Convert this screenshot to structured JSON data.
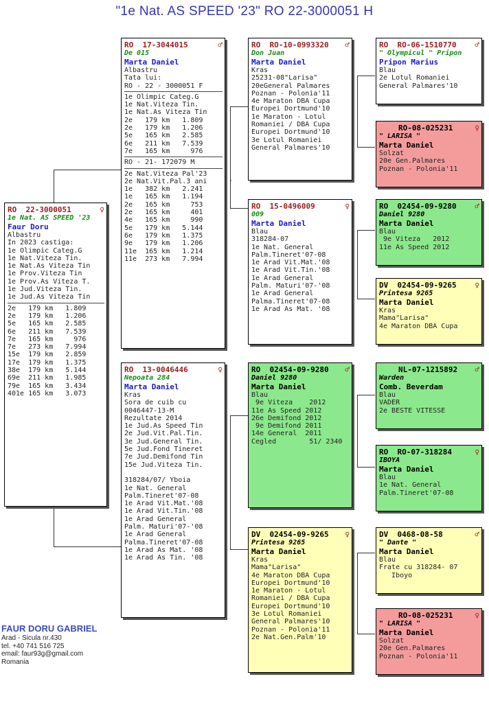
{
  "title": "\"1e Nat. AS SPEED '23\"  RO  22-3000051 H",
  "subject": {
    "ring": "RO  22-3000051",
    "sex": "♀",
    "name": "1e Nat. AS SPEED '23",
    "owner": "Faur Doru",
    "lines": [
      "Albastru",
      "In 2023 castiga:",
      "1e Olimpic Categ.G",
      "1e Nat.Viteza Tin.",
      "1e Nat.As Viteza Tin",
      "1e Prov.Viteza Tin",
      "1e Prov.As Viteza T.",
      "1e Jud.Viteza Tin.",
      "1e Jud.As Viteza Tin"
    ],
    "results": [
      "2e   179 km   1.809",
      "2e   179 km   1.206",
      "5e   165 km   2.585",
      "6e   211 km   7.539",
      "7e   165 km     976",
      "7e   273 km   7.994",
      "15e  179 km   2.859",
      "17e  179 km   1.375",
      "38e  179 km   5.144",
      "69e  211 km   1.985",
      "79e  165 km   3.434",
      "401e 165 km   3.073"
    ]
  },
  "sire": {
    "ring": "RO  17-3044015",
    "sex": "♂",
    "name": "De 015",
    "owner": "Marta Daniel",
    "lines": [
      "Albastru",
      "Tata lui:",
      "RO - 22 - 3000051 F"
    ],
    "block2": [
      "1e Olimpic Categ.G",
      "1e Nat.Viteza Tin.",
      "1e Nat.As Viteza Tin",
      "2e   179 km   1.809",
      "2e   179 km   1.206",
      "5e   165 km   2.585",
      "6e   211 km   7.539",
      "7e   165 km     976"
    ],
    "block3": [
      "RO - 21- 172079 M"
    ],
    "block4": [
      "2e Nat.Viteza Pal'23",
      "2e Nat.Vit.Pal.3 ani",
      "1e   382 km   2.241",
      "1e   165 km   1.194",
      "2e   165 km     753",
      "2e   165 km     401",
      "4e   165 km     990",
      "5e   179 km   5.144",
      "6e   179 km   1.375",
      "9e   179 km   1.206",
      "11e  165 km   1.214",
      "11e  273 km   7.994"
    ]
  },
  "dam": {
    "ring": "RO  13-0046446",
    "sex": "♀",
    "name": "Nepoata 284",
    "owner": "Marta Daniel",
    "lines": [
      "Kras",
      "Sora de cuib cu",
      "0046447-13-M",
      "Rezultate 2014",
      "1e Jud.As Speed Tin",
      "2e Jud.Vit.Pal.Tin.",
      "3e Jud.General Tin.",
      "5e Jud.Fond Tineret",
      "7e Jud.Demifond Tin",
      "15e Jud.Viteza Tin.",
      "",
      "318284/07/ Yboia",
      "1e Nat. General",
      "Palm.Tineret'07-08",
      "1e Arad Vit.Mat.'08",
      "1e Arad Vit.Tin.'08",
      "1e Arad General",
      "Palm. Maturi'07-'08",
      "1e Arad General",
      "Palma.Tineret'07-08",
      "1e Arad As Mat. '08",
      "1e Arad As Tin. '08"
    ]
  },
  "ss": {
    "ring": "RO  RO-10-0993320",
    "sex": "♂",
    "name": "Don Juan",
    "owner": "Marta Daniel",
    "lines": [
      "Kras",
      "25231-08\"Larisa\"",
      "20eGeneral Palmares",
      "Poznan - Polonia'11",
      "4e Maraton DBA Cupa",
      "Europei Dortmund'10",
      "1e Maraton - Lotul",
      "Romaniei / DBA Cupa",
      "Europei Dortmund'10",
      "3e Lotul Romaniei",
      "General Palmares'10"
    ]
  },
  "sd": {
    "ring": "RO  15-0496009",
    "sex": "♀",
    "name": "009",
    "owner": "Marta Daniel",
    "lines": [
      "Blau",
      "318284-07",
      "1e Nat. General",
      "Palm.Tineret'07-08",
      "1e Arad Vit.Mat.'08",
      "1e Arad Vit.Tin.'08",
      "1e Arad General",
      "Palm. Maturi'07-'08",
      "1e Arad General",
      "Palma.Tineret'07-08",
      "1e Arad As Mat. '08"
    ]
  },
  "ds": {
    "ring": "RO  02454-09-9280",
    "sex": "♂",
    "name": "Daniel 9280",
    "owner": "Marta Daniel",
    "lines": [
      "Blau",
      " 9e Viteza    2012",
      "11e As Speed 2012",
      "26e Demifond 2012",
      " 9e Demifond 2011",
      "14e General  2011",
      "Cegled        51/ 2340"
    ]
  },
  "dd": {
    "ring": "DV  02454-09-9265",
    "sex": "♀",
    "name": "Printesa 9265",
    "owner": "Marta Daniel",
    "lines": [
      "Kras",
      "Mama\"Larisa\"",
      "4e Maraton DBA Cupa",
      "Europei Dortmund'10",
      "1e Maraton - Lotul",
      "Romaniei / DBA Cupa",
      "Europei Dortmund'10",
      "3e Lotul Romaniei",
      "General Palmares'10",
      "Poznan - Polonia'11",
      "2e Nat.Gen.Palm'10"
    ]
  },
  "g1": {
    "ring": "RO  RO-06-1510770",
    "sex": "♂",
    "name": "\" Olympicul \" Pripon",
    "owner": "Pripon Marius",
    "lines": [
      "Blau",
      "2e Lotul Romaniei",
      "General Palmares'10"
    ]
  },
  "g2": {
    "ring": "RO-08-025231",
    "sex": "♀",
    "name": "\" LARISA \"",
    "owner": "Marta Daniel",
    "lines": [
      "Solzat",
      "20e Gen.Palmares",
      "Poznan - Polonia'11"
    ]
  },
  "g3": {
    "ring": "RO  02454-09-9280",
    "sex": "♂",
    "name": "Daniel 9280",
    "owner": "Marta Daniel",
    "lines": [
      "Blau",
      " 9e Viteza   2012",
      "11e As Speed 2012"
    ]
  },
  "g4": {
    "ring": "DV  02454-09-9265",
    "sex": "♀",
    "name": "Printesa 9265",
    "owner": "Marta Daniel",
    "lines": [
      "Kras",
      "Mama\"Larisa\"",
      "4e Maraton DBA Cupa"
    ]
  },
  "g5": {
    "ring": "NL-07-1215892",
    "sex": "♂",
    "name": "Warden",
    "owner": "Comb. Beverdam",
    "lines": [
      "Blau",
      "VADER",
      "2e BESTE VITESSE"
    ]
  },
  "g6": {
    "ring": "RO  RO-07-318284",
    "sex": "♀",
    "name": "IBOYA",
    "owner": "Marta Daniel",
    "lines": [
      "Blau",
      "1e Nat. General",
      "Palm.Tineret'07-08"
    ]
  },
  "g7": {
    "ring": "DV  0468-08-58",
    "sex": "♂",
    "name": "\" Dante \"",
    "owner": "Marta Daniel",
    "lines": [
      "Blau",
      "Frate cu 318284- 07",
      "   Iboyo"
    ]
  },
  "g8": {
    "ring": "RO-08-025231",
    "sex": "♀",
    "name": "\" LARISA \"",
    "owner": "Marta Daniel",
    "lines": [
      "Solzat",
      "20e Gen.Palmares",
      "Poznan - Polonia'11"
    ]
  },
  "footer": {
    "name": "FAUR DORU GABRIEL",
    "address": "Arad - Sicula nr.430",
    "phone": "tel. +40 741 516 725",
    "email": "email: faur93g@gmail.com",
    "country": "Romania"
  },
  "colors": {
    "white": "#ffffff",
    "green": "#8ce88c",
    "yellow": "#ffffb8",
    "pink": "#f49c9c",
    "ring_red": "#9b1b1b",
    "owner_blue": "#1a1acc",
    "name_green": "#128c12"
  }
}
